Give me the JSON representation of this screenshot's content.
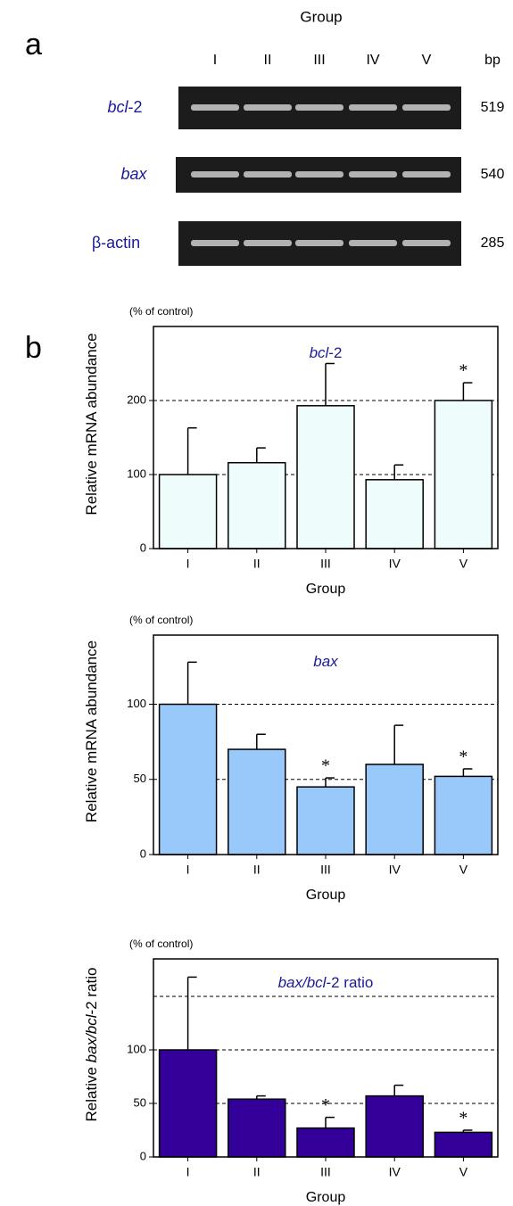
{
  "gel": {
    "panel": "a",
    "header": "Group",
    "lanes": [
      "I",
      "II",
      "III",
      "IV",
      "V"
    ],
    "size_header": "bp",
    "rows": [
      {
        "label": [
          {
            "text": "bcl",
            "italic": true
          },
          {
            "text": "-2",
            "italic": false
          }
        ],
        "size": "519"
      },
      {
        "label": [
          {
            "text": "bax",
            "italic": true
          }
        ],
        "size": "540"
      },
      {
        "label": [
          {
            "text": "β-actin",
            "italic": false
          }
        ],
        "size": "285"
      }
    ]
  },
  "panel_b": "b",
  "chart_data": [
    {
      "type": "bar",
      "title": [
        {
          "text": "bcl",
          "italic": true
        },
        {
          "text": "-2",
          "italic": false
        }
      ],
      "ylabel": [
        {
          "text": "Relative mRNA abundance",
          "italic": false
        }
      ],
      "unit_note": "(% of control)",
      "xlabel": "Group",
      "categories": [
        "I",
        "II",
        "III",
        "IV",
        "V"
      ],
      "values": [
        100,
        116,
        193,
        93,
        200
      ],
      "errors": [
        63,
        20,
        57,
        20,
        24
      ],
      "significance": [
        null,
        null,
        null,
        null,
        "*"
      ],
      "color": "#eefcfc",
      "ylim": [
        0,
        300
      ],
      "yticks": [
        0,
        100,
        200
      ],
      "gridlines": [
        100,
        200
      ]
    },
    {
      "type": "bar",
      "title": [
        {
          "text": "bax",
          "italic": true
        }
      ],
      "ylabel": [
        {
          "text": "Relative mRNA abundance",
          "italic": false
        }
      ],
      "unit_note": "(% of control)",
      "xlabel": "Group",
      "categories": [
        "I",
        "II",
        "III",
        "IV",
        "V"
      ],
      "values": [
        100,
        70,
        45,
        60,
        52
      ],
      "errors": [
        28,
        10,
        6,
        26,
        5
      ],
      "significance": [
        null,
        null,
        "*",
        null,
        "*"
      ],
      "color": "#99c8fa",
      "ylim": [
        0,
        146
      ],
      "yticks": [
        0,
        50,
        100
      ],
      "gridlines": [
        50,
        100
      ]
    },
    {
      "type": "bar",
      "title": [
        {
          "text": "bax/bcl",
          "italic": true
        },
        {
          "text": "-2 ratio",
          "italic": false
        }
      ],
      "ylabel": [
        {
          "text": "Relative ",
          "italic": false
        },
        {
          "text": "bax/bcl",
          "italic": true
        },
        {
          "text": "-2 ratio",
          "italic": false
        }
      ],
      "unit_note": "(% of control)",
      "xlabel": "Group",
      "categories": [
        "I",
        "II",
        "III",
        "IV",
        "V"
      ],
      "values": [
        100,
        54,
        27,
        57,
        23
      ],
      "errors": [
        68,
        3,
        10,
        10,
        2
      ],
      "significance": [
        null,
        null,
        "*",
        null,
        "*"
      ],
      "color": "#330099",
      "ylim": [
        0,
        185
      ],
      "yticks": [
        0,
        50,
        100
      ],
      "gridlines": [
        50,
        100,
        150
      ]
    }
  ]
}
